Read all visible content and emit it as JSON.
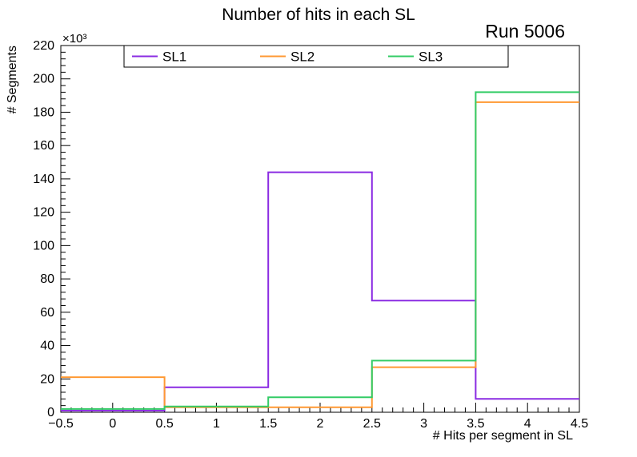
{
  "run_label": "Run 5006",
  "chart_data": {
    "type": "line",
    "subtype": "step-histogram",
    "title": "Number of hits in each SL",
    "xlabel": "# Hits per segment in SL",
    "ylabel": "# Segments",
    "y_unit": "×10³",
    "xlim": [
      -0.5,
      4.5
    ],
    "ylim": [
      0,
      220
    ],
    "x_ticks": [
      -0.5,
      0,
      0.5,
      1,
      1.5,
      2,
      2.5,
      3,
      3.5,
      4,
      4.5
    ],
    "x_tick_labels": [
      "−0.5",
      "0",
      "0.5",
      "1",
      "1.5",
      "2",
      "2.5",
      "3",
      "3.5",
      "4",
      "4.5"
    ],
    "y_ticks": [
      0,
      20,
      40,
      60,
      80,
      100,
      120,
      140,
      160,
      180,
      200,
      220
    ],
    "x_minor_step": 0.1,
    "y_minor_step": 4,
    "grid": false,
    "legend_position": "top-inside",
    "values_unit_scale": 1000,
    "x_edges": [
      -0.5,
      0.5,
      1.5,
      2.5,
      3.5,
      4.5
    ],
    "series": [
      {
        "name": "SL1",
        "color": "#8a2be2",
        "values": [
          1,
          15,
          144,
          67,
          8
        ]
      },
      {
        "name": "SL2",
        "color": "#ff9933",
        "values": [
          21,
          3,
          3,
          27,
          186
        ]
      },
      {
        "name": "SL3",
        "color": "#33cc66",
        "values": [
          2,
          3.5,
          9,
          31,
          192
        ]
      }
    ]
  }
}
